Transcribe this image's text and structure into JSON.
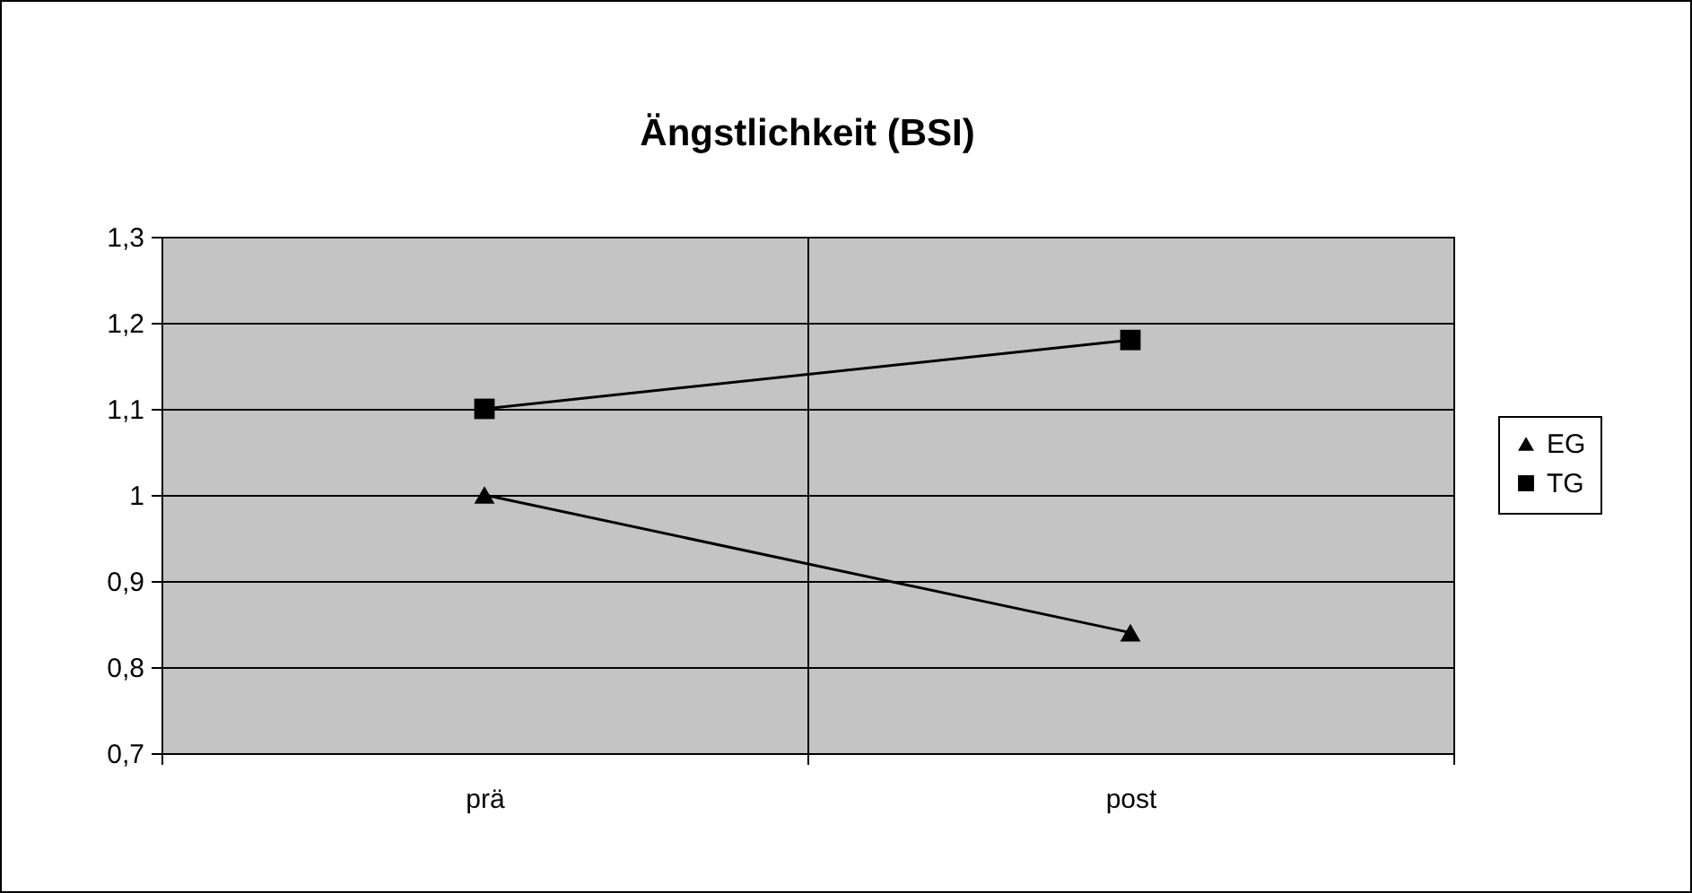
{
  "chart_data": {
    "type": "line",
    "title": "Ängstlichkeit (BSI)",
    "categories": [
      "prä",
      "post"
    ],
    "series": [
      {
        "name": "EG",
        "color": "#000000",
        "marker": "triangle",
        "values": [
          1.0,
          0.84
        ]
      },
      {
        "name": "TG",
        "color": "#000000",
        "marker": "square",
        "values": [
          1.1,
          1.18
        ]
      }
    ],
    "ylim": [
      0.7,
      1.3
    ],
    "yticks": [
      {
        "value": 0.7,
        "label": "0,7"
      },
      {
        "value": 0.8,
        "label": "0,8"
      },
      {
        "value": 0.9,
        "label": "0,9"
      },
      {
        "value": 1,
        "label": "1"
      },
      {
        "value": 1.1,
        "label": "1,1"
      },
      {
        "value": 1.2,
        "label": "1,2"
      },
      {
        "value": 1.3,
        "label": "1,3"
      }
    ],
    "grid": true,
    "legend": "right",
    "line_style": "solid"
  }
}
